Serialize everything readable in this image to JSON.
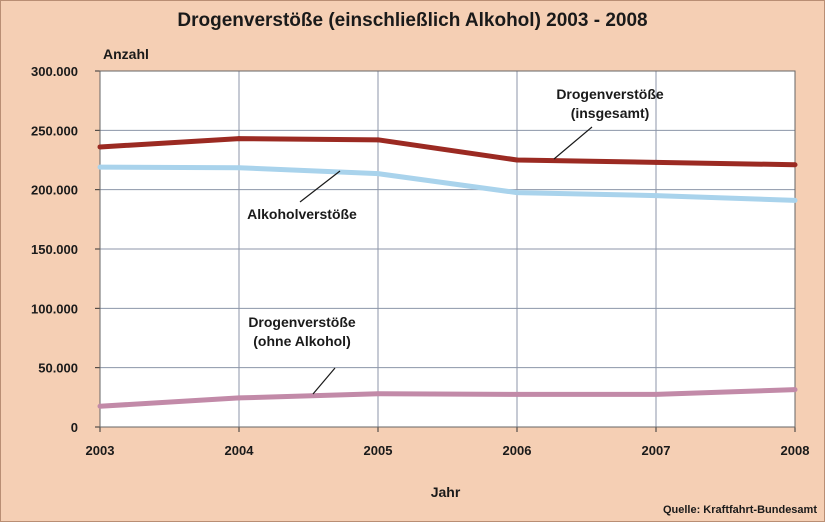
{
  "chart_data": {
    "type": "line",
    "title": "Drogenverstöße (einschließlich Alkohol) 2003 - 2008",
    "xlabel": "Jahr",
    "ylabel": "Anzahl",
    "x": [
      2003,
      2004,
      2005,
      2006,
      2007,
      2008
    ],
    "ylim": [
      0,
      300000
    ],
    "y_ticks": [
      "0",
      "50.000",
      "100.000",
      "150.000",
      "200.000",
      "250.000",
      "300.000"
    ],
    "x_ticks": [
      "2003",
      "2004",
      "2005",
      "2006",
      "2007",
      "2008"
    ],
    "grid": true,
    "series": [
      {
        "name": "Drogenverstöße (insgesamt)",
        "color": "#9b2a22",
        "values": [
          236000,
          243000,
          242000,
          225000,
          223000,
          221000
        ],
        "label_lines": [
          "Drogenverstöße",
          "(insgesamt)"
        ]
      },
      {
        "name": "Alkoholverstöße",
        "color": "#a9d3ec",
        "values": [
          219000,
          218500,
          213500,
          197500,
          195000,
          191000
        ],
        "label_lines": [
          "Alkoholverstöße"
        ]
      },
      {
        "name": "Drogenverstöße (ohne Alkohol)",
        "color": "#c28aa8",
        "values": [
          17500,
          24500,
          28000,
          27500,
          27500,
          31500
        ],
        "label_lines": [
          "Drogenverstöße",
          "(ohne Alkohol)"
        ]
      }
    ],
    "source": "Quelle: Kraftfahrt-Bundesamt"
  }
}
